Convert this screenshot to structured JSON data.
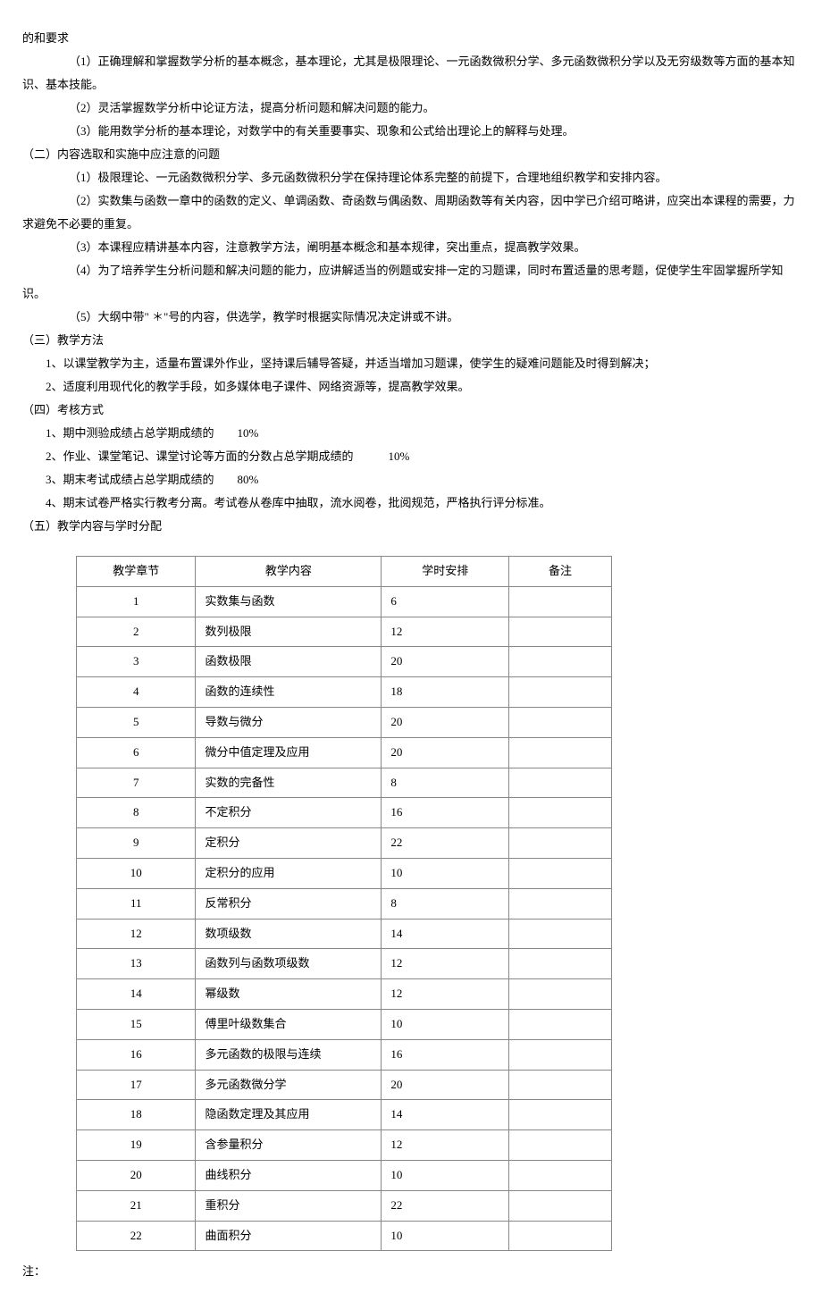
{
  "p1": "的和要求",
  "p2": "（1）正确理解和掌握数学分析的基本概念，基本理论，尤其是极限理论、一元函数微积分学、多元函数微积分学以及无穷级数等方面的基本知识、基本技能。",
  "p3": "（2）灵活掌握数学分析中论证方法，提高分析问题和解决问题的能力。",
  "p4": "（3）能用数学分析的基本理论，对数学中的有关重要事实、现象和公式给出理论上的解释与处理。",
  "p5": "（二）内容选取和实施中应注意的问题",
  "p6": "（1）极限理论、一元函数微积分学、多元函数微积分学在保持理论体系完整的前提下，合理地组织教学和安排内容。",
  "p7": "（2）实数集与函数一章中的函数的定义、单调函数、奇函数与偶函数、周期函数等有关内容，因中学已介绍可略讲，应突出本课程的需要，力求避免不必要的重复。",
  "p8": "（3）本课程应精讲基本内容，注意教学方法，阐明基本概念和基本规律，突出重点，提高教学效果。",
  "p9": "（4）为了培养学生分析问题和解决问题的能力，应讲解适当的例题或安排一定的习题课，同时布置适量的思考题，促使学生牢固掌握所学知识。",
  "p10": "（5）大纲中带\" ＊\"号的内容，供选学，教学时根据实际情况决定讲或不讲。",
  "p11": "（三）教学方法",
  "p12": "1、以课堂教学为主，适量布置课外作业，坚持课后辅导答疑，并适当增加习题课，使学生的疑难问题能及时得到解决；",
  "p13": "2、适度利用现代化的教学手段，如多媒体电子课件、网络资源等，提高教学效果。",
  "p14": "（四）考核方式",
  "p15": "1、期中测验成绩占总学期成绩的　　10%",
  "p16": "2、作业、课堂笔记、课堂讨论等方面的分数占总学期成绩的　　　10%",
  "p17": "3、期末考试成绩占总学期成绩的　　80%",
  "p18": "4、期末试卷严格实行教考分离。考试卷从卷库中抽取，流水阅卷，批阅规范，严格执行评分标准。",
  "p19": "（五）教学内容与学时分配",
  "table": {
    "columns": [
      "教学章节",
      "教学内容",
      "学时安排",
      "备注"
    ],
    "rows": [
      [
        "1",
        "实数集与函数",
        "6",
        ""
      ],
      [
        "2",
        "数列极限",
        "12",
        ""
      ],
      [
        "3",
        "函数极限",
        "20",
        ""
      ],
      [
        "4",
        "函数的连续性",
        "18",
        ""
      ],
      [
        "5",
        "导数与微分",
        "20",
        ""
      ],
      [
        "6",
        "微分中值定理及应用",
        "20",
        ""
      ],
      [
        "7",
        "实数的完备性",
        "8",
        ""
      ],
      [
        "8",
        "不定积分",
        "16",
        ""
      ],
      [
        "9",
        "定积分",
        "22",
        ""
      ],
      [
        "10",
        "定积分的应用",
        "10",
        ""
      ],
      [
        "11",
        "反常积分",
        "8",
        ""
      ],
      [
        "12",
        "数项级数",
        "14",
        ""
      ],
      [
        "13",
        "函数列与函数项级数",
        "12",
        ""
      ],
      [
        "14",
        "幂级数",
        "12",
        ""
      ],
      [
        "15",
        "傅里叶级数集合",
        "10",
        ""
      ],
      [
        "16",
        "多元函数的极限与连续",
        "16",
        ""
      ],
      [
        "17",
        "多元函数微分学",
        "20",
        ""
      ],
      [
        "18",
        "隐函数定理及其应用",
        "14",
        ""
      ],
      [
        "19",
        "含参量积分",
        "12",
        ""
      ],
      [
        "20",
        "曲线积分",
        "10",
        ""
      ],
      [
        "21",
        "重积分",
        "22",
        ""
      ],
      [
        "22",
        "曲面积分",
        "10",
        ""
      ]
    ]
  },
  "footer": "注："
}
